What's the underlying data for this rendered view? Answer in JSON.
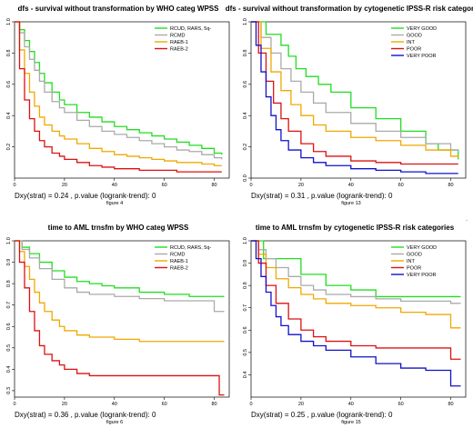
{
  "chart_data": [
    {
      "type": "line",
      "step": true,
      "title": "dfs - survival without transformation by WHO categ WPSS",
      "footer": "Dxy(strat) = 0.24 , p.value (logrank-trend): 0",
      "figure_label": "figure 4",
      "xlabel": "",
      "ylabel": "",
      "xlim": [
        0,
        86
      ],
      "ylim": [
        0,
        1
      ],
      "xticks": [
        0,
        20,
        40,
        60,
        80
      ],
      "yticks": [
        0.2,
        0.4,
        0.6,
        0.8,
        1.0
      ],
      "ytick_labels": [
        "0.2",
        "0.4",
        "0.6",
        "0.8",
        "1.0"
      ],
      "legend_position": "top-right",
      "series": [
        {
          "name": "RCUD, RARS, 5q-",
          "color": "#22dd22",
          "x": [
            0,
            2,
            4,
            6,
            8,
            10,
            12,
            15,
            18,
            20,
            25,
            30,
            35,
            40,
            45,
            50,
            55,
            60,
            65,
            70,
            75,
            80,
            83
          ],
          "y": [
            1,
            0.95,
            0.88,
            0.81,
            0.74,
            0.67,
            0.61,
            0.55,
            0.5,
            0.47,
            0.42,
            0.39,
            0.36,
            0.33,
            0.31,
            0.29,
            0.27,
            0.25,
            0.23,
            0.21,
            0.19,
            0.16,
            0.15
          ]
        },
        {
          "name": "RCMD",
          "color": "#aaaaaa",
          "x": [
            0,
            2,
            4,
            6,
            8,
            10,
            12,
            15,
            18,
            20,
            25,
            30,
            35,
            40,
            45,
            50,
            55,
            60,
            65,
            70,
            75,
            80,
            83
          ],
          "y": [
            1,
            0.93,
            0.84,
            0.76,
            0.69,
            0.62,
            0.55,
            0.49,
            0.45,
            0.42,
            0.37,
            0.33,
            0.3,
            0.28,
            0.26,
            0.24,
            0.22,
            0.2,
            0.18,
            0.17,
            0.15,
            0.13,
            0.12
          ]
        },
        {
          "name": "RAEB-1",
          "color": "#f0a800",
          "x": [
            0,
            2,
            4,
            6,
            8,
            10,
            12,
            15,
            18,
            20,
            25,
            30,
            35,
            40,
            45,
            50,
            55,
            60,
            65,
            70,
            75,
            80,
            83
          ],
          "y": [
            1,
            0.82,
            0.67,
            0.55,
            0.46,
            0.39,
            0.34,
            0.3,
            0.27,
            0.25,
            0.22,
            0.19,
            0.17,
            0.15,
            0.14,
            0.13,
            0.12,
            0.11,
            0.1,
            0.1,
            0.09,
            0.08,
            0.08
          ]
        },
        {
          "name": "RAEB-2",
          "color": "#dd1111",
          "x": [
            0,
            2,
            4,
            6,
            8,
            10,
            12,
            15,
            18,
            20,
            25,
            30,
            35,
            40,
            45,
            50,
            55,
            60,
            65,
            70,
            75,
            80,
            83
          ],
          "y": [
            1,
            0.7,
            0.5,
            0.38,
            0.3,
            0.24,
            0.2,
            0.16,
            0.14,
            0.12,
            0.1,
            0.08,
            0.07,
            0.06,
            0.06,
            0.05,
            0.05,
            0.05,
            0.04,
            0.04,
            0.04,
            0.04,
            0.04
          ]
        }
      ]
    },
    {
      "type": "line",
      "step": true,
      "title": "dfs - survival without transformation by cytogenetic IPSS-R risk categories",
      "footer": "Dxy(strat) = 0.31 , p.value (logrank-trend): 0",
      "figure_label": "figure 13",
      "xlabel": "",
      "ylabel": "",
      "xlim": [
        0,
        86
      ],
      "ylim": [
        0,
        1
      ],
      "xticks": [
        0,
        20,
        40,
        60,
        80
      ],
      "yticks": [
        0.0,
        0.2,
        0.4,
        0.6,
        0.8,
        1.0
      ],
      "ytick_labels": [
        "0.0",
        "0.2",
        "0.4",
        "0.6",
        "0.8",
        "1.0"
      ],
      "legend_position": "top-right",
      "series": [
        {
          "name": "VERY GOOD",
          "color": "#22dd22",
          "x": [
            0,
            6,
            12,
            15,
            18,
            22,
            27,
            32,
            40,
            50,
            60,
            70,
            75,
            83
          ],
          "y": [
            1,
            0.92,
            0.85,
            0.78,
            0.7,
            0.65,
            0.6,
            0.55,
            0.45,
            0.38,
            0.3,
            0.22,
            0.18,
            0.12
          ]
        },
        {
          "name": "GOOD",
          "color": "#aaaaaa",
          "x": [
            0,
            4,
            8,
            12,
            16,
            20,
            25,
            30,
            40,
            50,
            60,
            70,
            80,
            83
          ],
          "y": [
            1,
            0.9,
            0.8,
            0.7,
            0.62,
            0.55,
            0.48,
            0.42,
            0.35,
            0.3,
            0.26,
            0.22,
            0.18,
            0.17
          ]
        },
        {
          "name": "INT",
          "color": "#f0a800",
          "x": [
            0,
            4,
            8,
            12,
            16,
            20,
            25,
            30,
            40,
            50,
            60,
            70,
            80,
            83
          ],
          "y": [
            1,
            0.83,
            0.68,
            0.56,
            0.47,
            0.4,
            0.34,
            0.3,
            0.26,
            0.24,
            0.21,
            0.18,
            0.14,
            0.13
          ]
        },
        {
          "name": "POOR",
          "color": "#dd1111",
          "x": [
            0,
            3,
            6,
            9,
            12,
            15,
            20,
            25,
            30,
            40,
            50,
            60,
            70,
            80,
            83
          ],
          "y": [
            1,
            0.8,
            0.62,
            0.48,
            0.38,
            0.3,
            0.22,
            0.17,
            0.14,
            0.11,
            0.1,
            0.09,
            0.09,
            0.09,
            0.09
          ]
        },
        {
          "name": "VERY POOR",
          "color": "#1111cc",
          "x": [
            0,
            2,
            4,
            6,
            8,
            10,
            12,
            15,
            20,
            25,
            30,
            40,
            50,
            60,
            70,
            80,
            83
          ],
          "y": [
            1,
            0.85,
            0.68,
            0.52,
            0.4,
            0.31,
            0.24,
            0.18,
            0.13,
            0.1,
            0.08,
            0.06,
            0.05,
            0.04,
            0.03,
            0.03,
            0.03
          ]
        }
      ]
    },
    {
      "type": "line",
      "step": true,
      "title": "time to AML trnsfm by WHO categ WPSS",
      "footer": "Dxy(strat) = 0.36 , p.value (logrank-trend): 0",
      "figure_label": "figure 6",
      "xlabel": "",
      "ylabel": "",
      "xlim": [
        0,
        86
      ],
      "ylim": [
        0.27,
        1
      ],
      "xticks": [
        0,
        20,
        40,
        60,
        80
      ],
      "yticks": [
        0.3,
        0.4,
        0.5,
        0.6,
        0.7,
        0.8,
        0.9,
        1.0
      ],
      "ytick_labels": [
        "0.3",
        "0.4",
        "0.5",
        "0.6",
        "0.7",
        "0.8",
        "0.9",
        "1.0"
      ],
      "legend_position": "top-right",
      "series": [
        {
          "name": "RCUD, RARS, 5q-",
          "color": "#22dd22",
          "x": [
            0,
            3,
            6,
            10,
            15,
            20,
            25,
            30,
            35,
            40,
            50,
            60,
            70,
            80,
            84
          ],
          "y": [
            1,
            0.97,
            0.94,
            0.9,
            0.86,
            0.83,
            0.81,
            0.8,
            0.79,
            0.78,
            0.76,
            0.75,
            0.74,
            0.74,
            0.74
          ]
        },
        {
          "name": "RCMD",
          "color": "#aaaaaa",
          "x": [
            0,
            3,
            6,
            10,
            15,
            20,
            25,
            30,
            40,
            50,
            60,
            70,
            80,
            84
          ],
          "y": [
            1,
            0.96,
            0.92,
            0.87,
            0.82,
            0.78,
            0.76,
            0.75,
            0.74,
            0.73,
            0.72,
            0.72,
            0.67,
            0.67
          ]
        },
        {
          "name": "RAEB-1",
          "color": "#f0a800",
          "x": [
            0,
            2,
            4,
            6,
            8,
            10,
            12,
            15,
            18,
            20,
            25,
            30,
            40,
            50,
            60,
            70,
            80,
            84
          ],
          "y": [
            1,
            0.95,
            0.88,
            0.82,
            0.76,
            0.71,
            0.67,
            0.63,
            0.6,
            0.58,
            0.56,
            0.55,
            0.54,
            0.53,
            0.53,
            0.53,
            0.53,
            0.53
          ]
        },
        {
          "name": "RAEB-2",
          "color": "#dd1111",
          "x": [
            0,
            2,
            4,
            6,
            8,
            10,
            12,
            15,
            18,
            20,
            25,
            30,
            40,
            50,
            60,
            70,
            80,
            82,
            84
          ],
          "y": [
            1,
            0.9,
            0.78,
            0.67,
            0.58,
            0.51,
            0.47,
            0.44,
            0.42,
            0.4,
            0.38,
            0.37,
            0.37,
            0.37,
            0.37,
            0.37,
            0.37,
            0.28,
            0.28
          ]
        }
      ]
    },
    {
      "type": "line",
      "step": true,
      "title": "time to AML trnsfm by cytogenetic IPSS-R risk categories",
      "footer": "Dxy(strat) = 0.25 , p.value (logrank-trend): 0",
      "figure_label": "figure 15",
      "xlabel": "",
      "ylabel": "",
      "xlim": [
        0,
        86
      ],
      "ylim": [
        0.3,
        1
      ],
      "xticks": [
        0,
        20,
        40,
        60,
        80
      ],
      "yticks": [
        0.4,
        0.5,
        0.6,
        0.7,
        0.8,
        0.9,
        1.0
      ],
      "ytick_labels": [
        "0.4",
        "0.5",
        "0.6",
        "0.7",
        "0.8",
        "0.9",
        "1.0"
      ],
      "legend_position": "top-right",
      "series": [
        {
          "name": "VERY GOOD",
          "color": "#22dd22",
          "x": [
            0,
            5,
            8,
            12,
            20,
            30,
            40,
            50,
            60,
            70,
            80,
            84
          ],
          "y": [
            1,
            0.92,
            0.92,
            0.92,
            0.85,
            0.8,
            0.78,
            0.75,
            0.75,
            0.75,
            0.75,
            0.75
          ]
        },
        {
          "name": "GOOD",
          "color": "#aaaaaa",
          "x": [
            0,
            3,
            6,
            10,
            15,
            20,
            25,
            30,
            40,
            50,
            60,
            70,
            80,
            84
          ],
          "y": [
            1,
            0.96,
            0.92,
            0.88,
            0.84,
            0.8,
            0.78,
            0.76,
            0.75,
            0.74,
            0.73,
            0.73,
            0.72,
            0.72
          ]
        },
        {
          "name": "INT",
          "color": "#f0a800",
          "x": [
            0,
            3,
            6,
            10,
            15,
            20,
            25,
            30,
            40,
            50,
            60,
            70,
            80,
            84
          ],
          "y": [
            1,
            0.94,
            0.88,
            0.83,
            0.79,
            0.76,
            0.74,
            0.72,
            0.71,
            0.7,
            0.68,
            0.67,
            0.61,
            0.61
          ]
        },
        {
          "name": "POOR",
          "color": "#dd1111",
          "x": [
            0,
            3,
            6,
            10,
            15,
            20,
            25,
            30,
            40,
            50,
            60,
            70,
            80,
            84
          ],
          "y": [
            1,
            0.9,
            0.8,
            0.72,
            0.65,
            0.6,
            0.57,
            0.55,
            0.53,
            0.52,
            0.52,
            0.52,
            0.47,
            0.47
          ]
        },
        {
          "name": "VERY POOR",
          "color": "#1111cc",
          "x": [
            0,
            2,
            4,
            6,
            8,
            10,
            12,
            15,
            20,
            25,
            30,
            40,
            50,
            60,
            70,
            80,
            84
          ],
          "y": [
            1,
            0.92,
            0.84,
            0.77,
            0.71,
            0.66,
            0.62,
            0.58,
            0.55,
            0.53,
            0.51,
            0.48,
            0.45,
            0.43,
            0.42,
            0.35,
            0.35
          ]
        }
      ]
    }
  ],
  "stray_mark": "-"
}
